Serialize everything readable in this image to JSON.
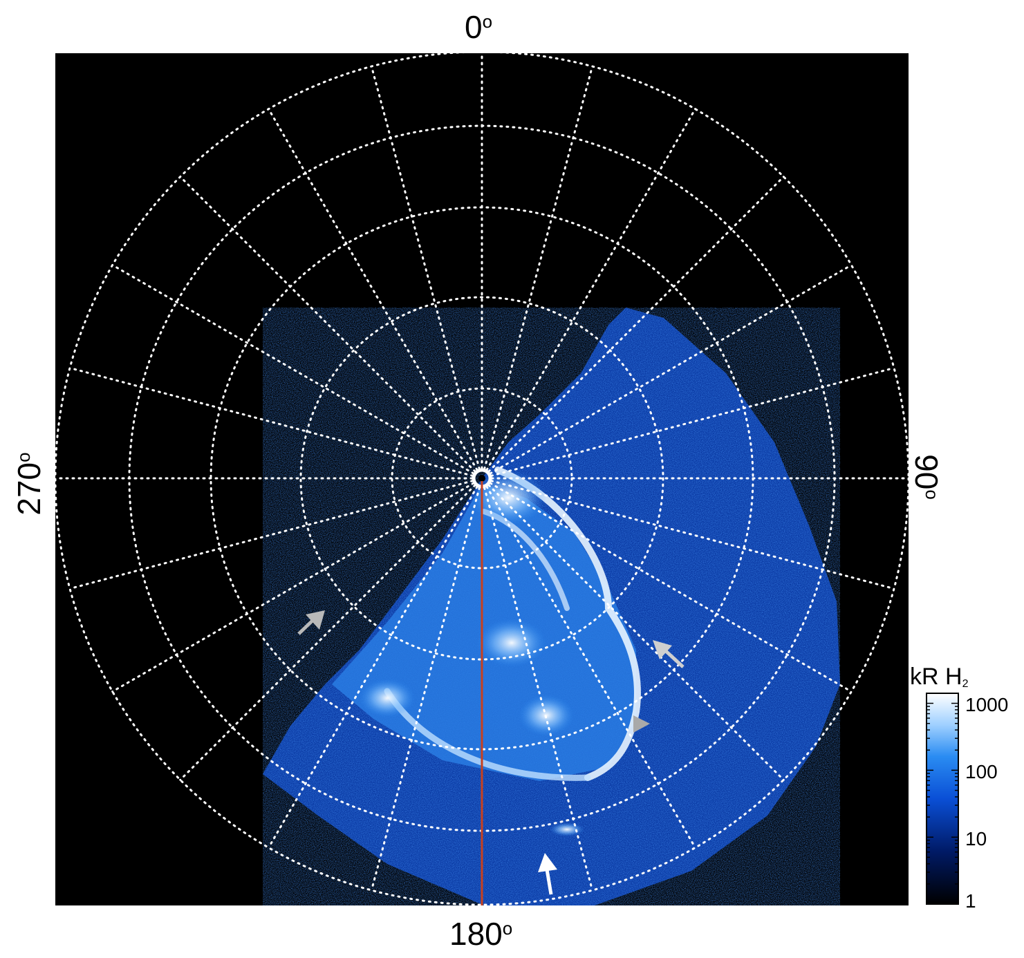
{
  "figure": {
    "labels": {
      "top": "0",
      "bottom": "180",
      "left": "270",
      "right": "90",
      "degree_symbol": "o"
    },
    "colorbar": {
      "title_main": "kR H",
      "title_sub": "2",
      "ticks": [
        "1000",
        "100",
        "10",
        "1"
      ],
      "scale": "log",
      "colors": [
        "#000000",
        "#001a66",
        "#0a4fd6",
        "#2a8cf2",
        "#9fd0ff",
        "#ffffff"
      ]
    },
    "colors": {
      "background": "#000000",
      "grid": "#ffffff",
      "meridian_line": "#c8401e",
      "arrow_gray": "#b9b9b9",
      "arrow_white": "#ffffff"
    }
  }
}
